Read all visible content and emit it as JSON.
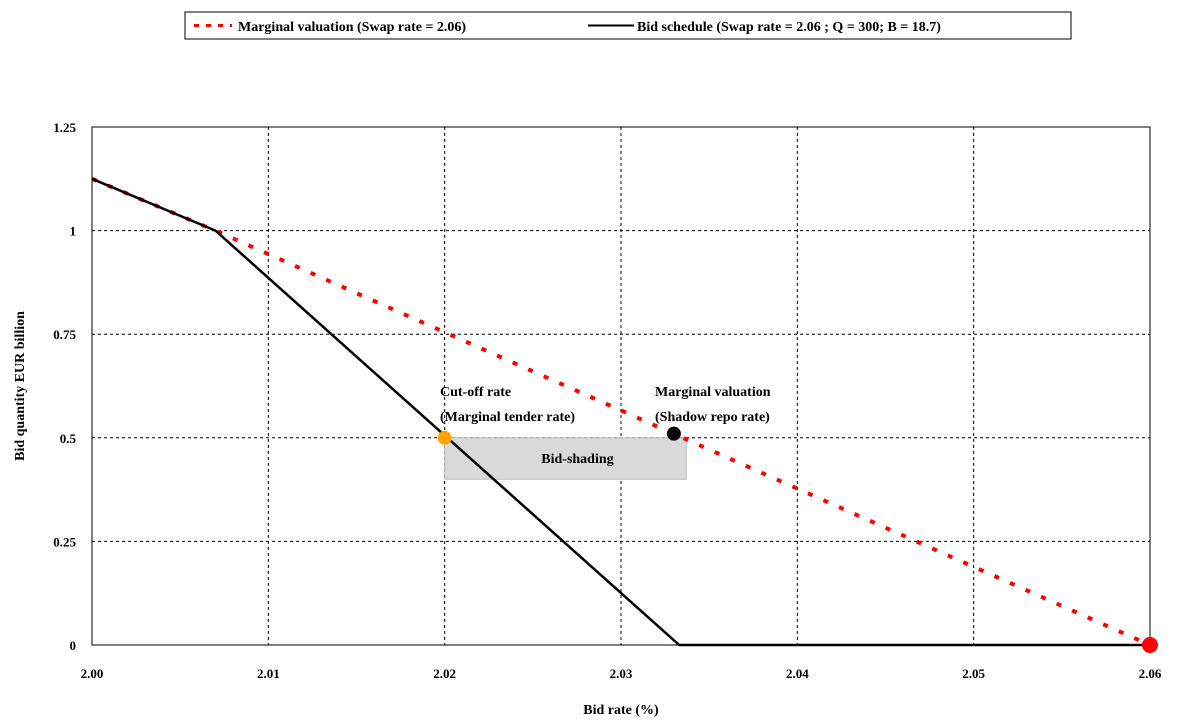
{
  "chart_data": {
    "type": "line",
    "xlabel": "Bid rate (%)",
    "ylabel": "Bid quantity EUR billion",
    "xlim": [
      2.0,
      2.06
    ],
    "ylim": [
      0,
      1.25
    ],
    "x_ticks": [
      "2.00",
      "2.01",
      "2.02",
      "2.03",
      "2.04",
      "2.05",
      "2.06"
    ],
    "y_ticks": [
      "0",
      "0.25",
      "0.5",
      "0.75",
      "1",
      "1.25"
    ],
    "grid": true,
    "legend_position": "top-center",
    "series": [
      {
        "name": "Marginal valuation (Swap rate = 2.06)",
        "style": "dotted",
        "color": "#ff0000",
        "points": [
          [
            2.0,
            1.125
          ],
          [
            2.007,
            1.0
          ],
          [
            2.06,
            0.0
          ]
        ]
      },
      {
        "name": "Bid schedule (Swap rate = 2.06 ; Q = 300; B = 18.7)",
        "style": "solid",
        "color": "#000000",
        "points": [
          [
            2.0,
            1.125
          ],
          [
            2.007,
            1.0
          ],
          [
            2.0333,
            0.0
          ],
          [
            2.06,
            0.0
          ]
        ]
      }
    ],
    "markers": [
      {
        "name": "cut-off",
        "x": 2.02,
        "y": 0.5,
        "color": "#ffa500"
      },
      {
        "name": "marginal-valuation",
        "x": 2.033,
        "y": 0.51,
        "color": "#000000"
      },
      {
        "name": "swap-rate",
        "x": 2.06,
        "y": 0.0,
        "color": "#ff0000"
      }
    ],
    "shaded_region": {
      "label": "Bid-shading",
      "x": [
        2.02,
        2.0337
      ],
      "y": [
        0.4,
        0.5
      ],
      "color": "#d9d9d9"
    },
    "annotations": [
      {
        "lines": [
          "Cut-off rate",
          "(Marginal tender rate)"
        ],
        "x": 2.02,
        "y": 0.5
      },
      {
        "lines": [
          "Marginal valuation",
          "(Shadow repo rate)"
        ],
        "x": 2.033,
        "y": 0.51
      }
    ]
  }
}
